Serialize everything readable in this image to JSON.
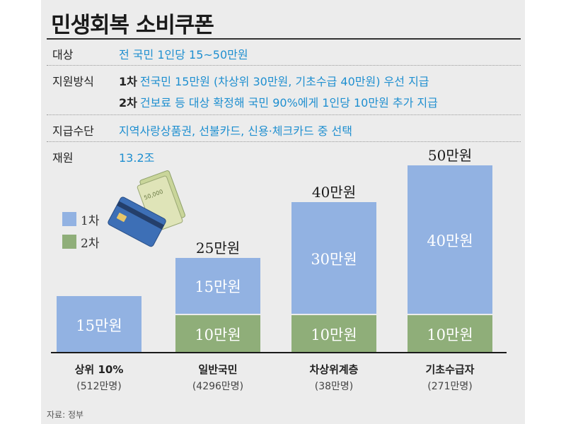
{
  "title": "민생회복 소비쿠폰",
  "info": {
    "target_label": "대상",
    "target_value": "전 국민 1인당 15~50만원",
    "method_label": "지원방식",
    "method_1_tag": "1차",
    "method_1_value": "전국민 15만원 (차상위 30만원, 기초수급 40만원) 우선 지급",
    "method_2_tag": "2차",
    "method_2_value": "건보료 등 대상 확정해 국민 90%에게 1인당 10만원 추가 지급",
    "means_label": "지급수단",
    "means_value": "지역사랑상품권, 선불카드, 신용·체크카드 중 선택",
    "fund_label": "재원",
    "fund_value": "13.2조"
  },
  "banknote_text": "50,000",
  "source": "자료: 정부",
  "colors": {
    "first": "#92b2e2",
    "second": "#8fae79"
  },
  "chart_data": {
    "type": "bar",
    "stacked": true,
    "unit": "만원",
    "legend": [
      "1차",
      "2차"
    ],
    "legend_position": "left",
    "categories": [
      "상위 10%",
      "일반국민",
      "차상위계층",
      "기초수급자"
    ],
    "counts": [
      "(512만명)",
      "(4296만명)",
      "(38만명)",
      "(271만명)"
    ],
    "series": [
      {
        "name": "1차",
        "values": [
          15,
          15,
          30,
          40
        ],
        "labels": [
          "15만원",
          "15만원",
          "30만원",
          "40만원"
        ]
      },
      {
        "name": "2차",
        "values": [
          0,
          10,
          10,
          10
        ],
        "labels": [
          "",
          "10만원",
          "10만원",
          "10만원"
        ]
      }
    ],
    "totals": [
      "",
      "25만원",
      "40만원",
      "50만원"
    ],
    "ylim": [
      0,
      50
    ]
  }
}
